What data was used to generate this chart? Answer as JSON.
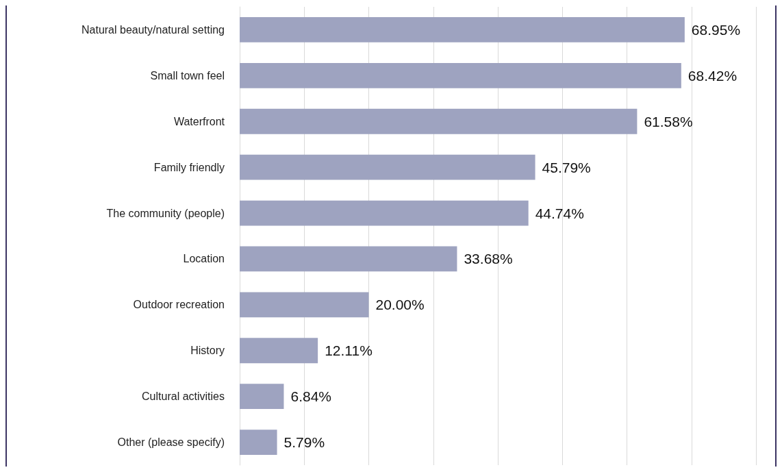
{
  "chart_data": {
    "type": "bar",
    "orientation": "horizontal",
    "categories": [
      "Natural beauty/natural setting",
      "Small town feel",
      "Waterfront",
      "Family friendly",
      "The community (people)",
      "Location",
      "Outdoor recreation",
      "History",
      "Cultural activities",
      "Other (please specify)"
    ],
    "values": [
      68.95,
      68.42,
      61.58,
      45.79,
      44.74,
      33.68,
      20.0,
      12.11,
      6.84,
      5.79
    ],
    "value_labels": [
      "68.95%",
      "68.42%",
      "61.58%",
      "45.79%",
      "44.74%",
      "33.68%",
      "20.00%",
      "12.11%",
      "6.84%",
      "5.79%"
    ],
    "color": "#9ea3c0",
    "xlim": [
      0,
      80
    ],
    "xticks": [
      {
        "value": 0,
        "label": null
      },
      {
        "value": 10,
        "label": null
      },
      {
        "value": 20,
        "label": null
      },
      {
        "value": 30,
        "label": null
      },
      {
        "value": 40,
        "label": null
      },
      {
        "value": 50,
        "label": null
      },
      {
        "value": 60,
        "label": null
      },
      {
        "value": 70,
        "label": null
      },
      {
        "value": 80,
        "label": null
      }
    ],
    "grid": "x",
    "tick_labels": "y"
  }
}
